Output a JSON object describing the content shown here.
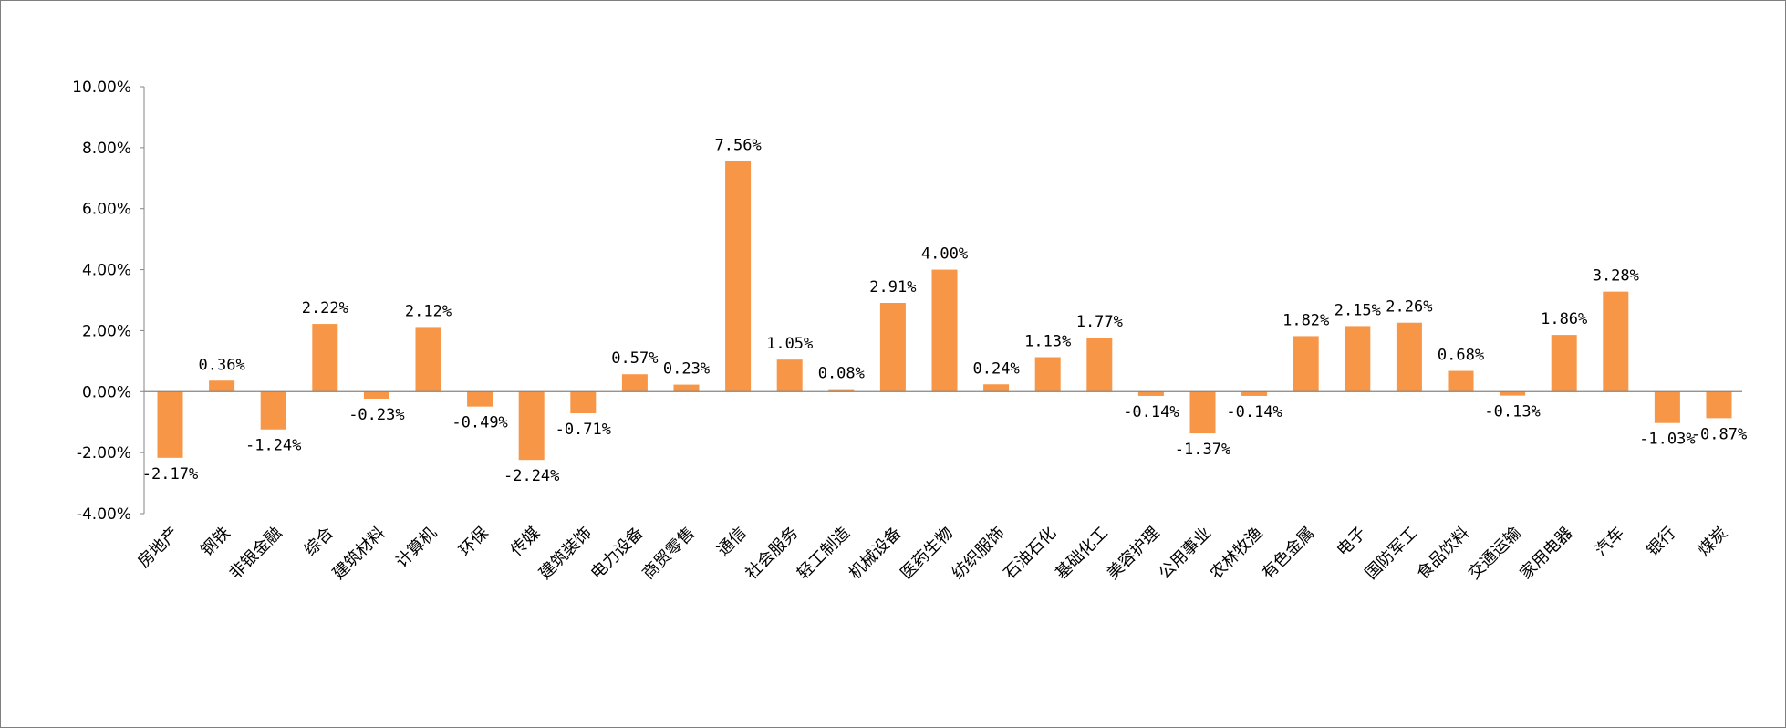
{
  "chart_data": {
    "type": "bar",
    "title": "",
    "xlabel": "",
    "ylabel": "",
    "ylim": [
      -4,
      10
    ],
    "yticks": [
      10,
      8,
      6,
      4,
      2,
      0,
      -2,
      -4
    ],
    "ytick_labels": [
      "10.00%",
      "8.00%",
      "6.00%",
      "4.00%",
      "2.00%",
      "0.00%",
      "-2.00%",
      "-4.00%"
    ],
    "bar_color": "#F79646",
    "categories": [
      "房地产",
      "钢铁",
      "非银金融",
      "综合",
      "建筑材料",
      "计算机",
      "环保",
      "传媒",
      "建筑装饰",
      "电力设备",
      "商贸零售",
      "通信",
      "社会服务",
      "轻工制造",
      "机械设备",
      "医药生物",
      "纺织服饰",
      "石油石化",
      "基础化工",
      "美容护理",
      "公用事业",
      "农林牧渔",
      "有色金属",
      "电子",
      "国防军工",
      "食品饮料",
      "交通运输",
      "家用电器",
      "汽车",
      "银行",
      "煤炭"
    ],
    "values": [
      -2.17,
      0.36,
      -1.24,
      2.22,
      -0.23,
      2.12,
      -0.49,
      -2.24,
      -0.71,
      0.57,
      0.23,
      7.56,
      1.05,
      0.08,
      2.91,
      4.0,
      0.24,
      1.13,
      1.77,
      -0.14,
      -1.37,
      -0.14,
      1.82,
      2.15,
      2.26,
      0.68,
      -0.13,
      1.86,
      3.28,
      -1.03,
      -0.87
    ],
    "data_labels": [
      "-2.17%",
      "0.36%",
      "-1.24%",
      "2.22%",
      "-0.23%",
      "2.12%",
      "-0.49%",
      "-2.24%",
      "-0.71%",
      "0.57%",
      "0.23%",
      "7.56%",
      "1.05%",
      "0.08%",
      "2.91%",
      "4.00%",
      "0.24%",
      "1.13%",
      "1.77%",
      "-0.14%",
      "-1.37%",
      "-0.14%",
      "1.82%",
      "2.15%",
      "2.26%",
      "0.68%",
      "-0.13%",
      "1.86%",
      "3.28%",
      "-1.03%",
      "-0.87%"
    ],
    "grid": false,
    "legend": "none"
  }
}
